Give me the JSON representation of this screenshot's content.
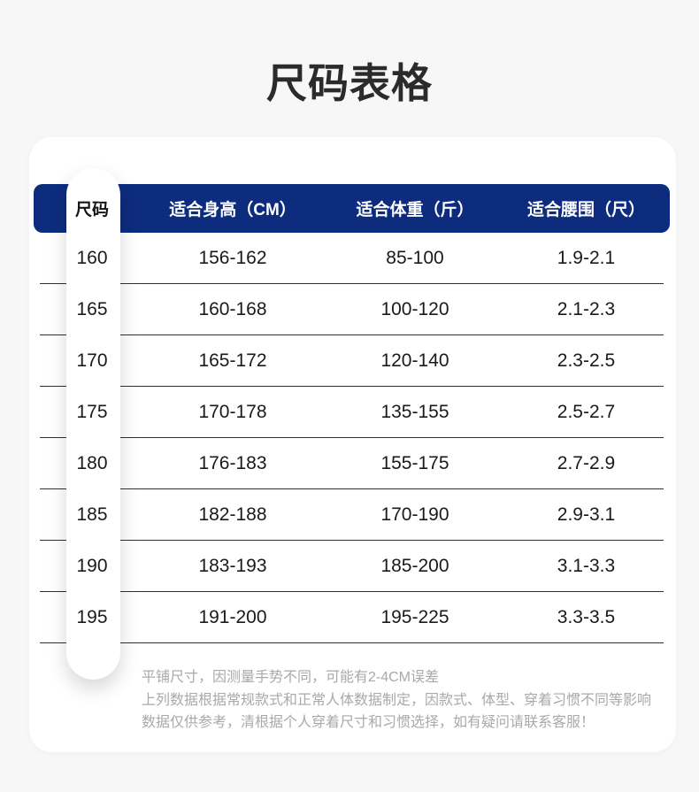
{
  "title": "尺码表格",
  "colors": {
    "accent_navy": "#0E2C7E",
    "background": "#F7F7F7",
    "card": "#FFFFFF",
    "text_dark": "#1A1A1A",
    "note_gray": "#A9A9A9"
  },
  "table": {
    "headers": {
      "size": "尺码",
      "height": "适合身高（CM）",
      "weight": "适合体重（斤）",
      "waist": "适合腰围（尺）"
    },
    "rows": [
      {
        "size": "160",
        "height": "156-162",
        "weight": "85-100",
        "waist": "1.9-2.1"
      },
      {
        "size": "165",
        "height": "160-168",
        "weight": "100-120",
        "waist": "2.1-2.3"
      },
      {
        "size": "170",
        "height": "165-172",
        "weight": "120-140",
        "waist": "2.3-2.5"
      },
      {
        "size": "175",
        "height": "170-178",
        "weight": "135-155",
        "waist": "2.5-2.7"
      },
      {
        "size": "180",
        "height": "176-183",
        "weight": "155-175",
        "waist": "2.7-2.9"
      },
      {
        "size": "185",
        "height": "182-188",
        "weight": "170-190",
        "waist": "2.9-3.1"
      },
      {
        "size": "190",
        "height": "183-193",
        "weight": "185-200",
        "waist": "3.1-3.3"
      },
      {
        "size": "195",
        "height": "191-200",
        "weight": "195-225",
        "waist": "3.3-3.5"
      }
    ]
  },
  "notes": {
    "line1": "平铺尺寸，因测量手势不同，可能有2-4CM误差",
    "line2": "上列数据根据常规款式和正常人体数据制定，因款式、体型、穿着习惯不同等影响",
    "line3": "数据仅供参考，清根据个人穿着尺寸和习惯选择，如有疑问请联系客服！"
  }
}
